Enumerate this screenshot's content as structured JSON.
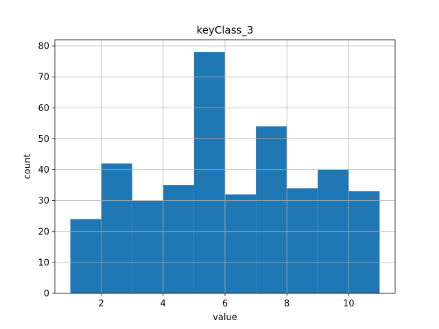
{
  "chart_data": {
    "type": "bar",
    "title": "keyClass_3",
    "xlabel": "value",
    "ylabel": "count",
    "bins": [
      {
        "start": 1,
        "end": 2,
        "count": 24
      },
      {
        "start": 2,
        "end": 3,
        "count": 42
      },
      {
        "start": 3,
        "end": 4,
        "count": 30
      },
      {
        "start": 4,
        "end": 5,
        "count": 35
      },
      {
        "start": 5,
        "end": 6,
        "count": 78
      },
      {
        "start": 6,
        "end": 7,
        "count": 32
      },
      {
        "start": 7,
        "end": 8,
        "count": 54
      },
      {
        "start": 8,
        "end": 9,
        "count": 34
      },
      {
        "start": 9,
        "end": 10,
        "count": 40
      },
      {
        "start": 10,
        "end": 11,
        "count": 33
      }
    ],
    "xlim": [
      0.5,
      11.5
    ],
    "ylim": [
      0,
      82
    ],
    "xticks": [
      2,
      4,
      6,
      8,
      10
    ],
    "yticks": [
      0,
      10,
      20,
      30,
      40,
      50,
      60,
      70,
      80
    ],
    "grid": true,
    "bar_color": "#1f77b4",
    "grid_color": "#b0b0b0"
  }
}
